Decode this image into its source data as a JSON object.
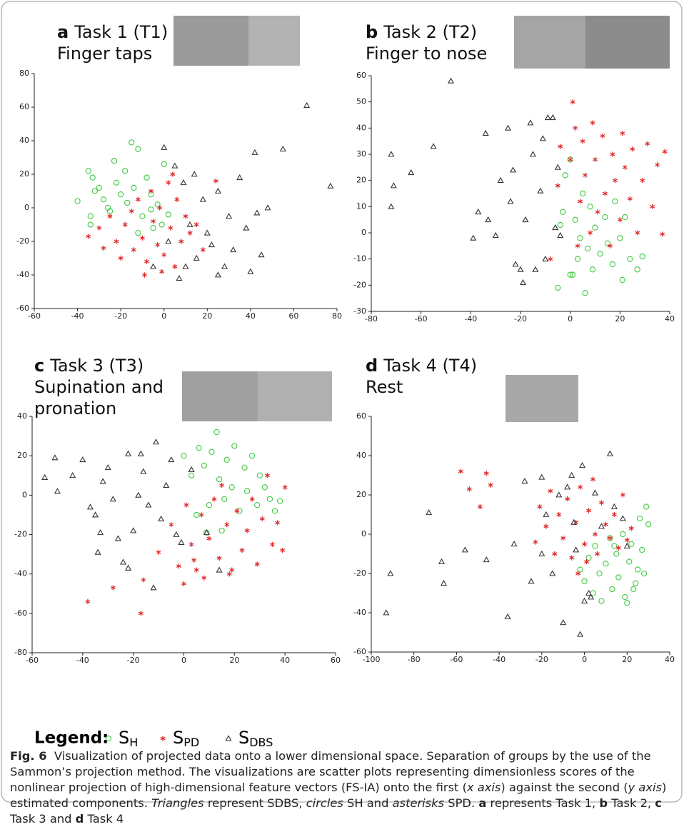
{
  "chart_data": [
    {
      "type": "scatter",
      "label": "a",
      "title": "Task 1 (T1)",
      "subtitle": "Finger taps",
      "xlim": [
        -60,
        80
      ],
      "ylim": [
        -60,
        80
      ],
      "xticks": [
        -60,
        -40,
        -20,
        0,
        20,
        40,
        60,
        80
      ],
      "yticks": [
        -60,
        -40,
        -20,
        0,
        20,
        40,
        60,
        80
      ],
      "series": [
        {
          "marker": "circle",
          "color": "#3fc93f",
          "x": [
            -40,
            -35,
            -34,
            -33,
            -32,
            -30,
            -28,
            -25,
            -23,
            -22,
            -20,
            -18,
            -17,
            -15,
            -14,
            -12,
            -10,
            -8,
            -6,
            -5,
            -3,
            -1,
            0,
            2,
            -34,
            -26,
            -12,
            -6
          ],
          "values": [
            4,
            22,
            -5,
            18,
            10,
            12,
            5,
            -2,
            28,
            15,
            8,
            22,
            3,
            39,
            12,
            35,
            -5,
            18,
            8,
            -12,
            2,
            -10,
            26,
            -4,
            -10,
            0,
            -15,
            -1
          ]
        },
        {
          "marker": "asterisk",
          "color": "#e02828",
          "x": [
            -35,
            -30,
            -28,
            -25,
            -22,
            -20,
            -18,
            -15,
            -14,
            -12,
            -10,
            -8,
            -6,
            -5,
            -3,
            -2,
            0,
            2,
            3,
            5,
            6,
            8,
            10,
            12,
            15,
            18,
            24,
            -9,
            -1,
            4
          ],
          "values": [
            -17,
            -12,
            -24,
            -5,
            -20,
            -30,
            -10,
            -2,
            -25,
            5,
            -18,
            -32,
            10,
            -8,
            -22,
            0,
            -28,
            15,
            -12,
            -35,
            5,
            -20,
            -5,
            -15,
            -10,
            -25,
            16,
            -40,
            -38,
            20
          ]
        },
        {
          "marker": "triangle",
          "color": "#333333",
          "x": [
            -5,
            0,
            2,
            5,
            7,
            9,
            10,
            12,
            14,
            15,
            18,
            20,
            22,
            25,
            28,
            30,
            32,
            35,
            38,
            40,
            42,
            45,
            48,
            55,
            66,
            77,
            43,
            25
          ],
          "values": [
            -35,
            36,
            -20,
            25,
            -42,
            15,
            -35,
            -10,
            20,
            -30,
            5,
            -15,
            -22,
            10,
            -35,
            -5,
            -25,
            18,
            -12,
            -38,
            33,
            -28,
            0,
            35,
            61,
            13,
            -3,
            -40
          ]
        }
      ]
    },
    {
      "type": "scatter",
      "label": "b",
      "title": "Task 2 (T2)",
      "subtitle": "Finger to nose",
      "xlim": [
        -80,
        40
      ],
      "ylim": [
        -30,
        60
      ],
      "xticks": [
        -80,
        -60,
        -40,
        -20,
        0,
        20,
        40
      ],
      "yticks": [
        -30,
        -20,
        -10,
        0,
        10,
        20,
        30,
        40,
        50,
        60
      ],
      "series": [
        {
          "marker": "circle",
          "color": "#3fc93f",
          "x": [
            -5,
            -3,
            -2,
            0,
            0,
            2,
            3,
            4,
            5,
            6,
            7,
            8,
            9,
            10,
            12,
            14,
            15,
            17,
            18,
            20,
            21,
            22,
            24,
            27,
            29,
            1,
            -4
          ],
          "values": [
            -21,
            8,
            22,
            -16,
            28,
            5,
            -10,
            -2,
            15,
            -23,
            -6,
            10,
            -14,
            2,
            -8,
            6,
            -4,
            -12,
            12,
            -2,
            -18,
            6,
            -10,
            -14,
            -9,
            -16,
            3
          ]
        },
        {
          "marker": "asterisk",
          "color": "#e02828",
          "x": [
            -8,
            -5,
            -4,
            0,
            1,
            2,
            3,
            4,
            5,
            6,
            8,
            9,
            10,
            11,
            13,
            14,
            16,
            17,
            18,
            20,
            21,
            22,
            24,
            25,
            27,
            29,
            31,
            33,
            35,
            37,
            38
          ],
          "values": [
            -10,
            18,
            33,
            28,
            50,
            40,
            -5,
            12,
            35,
            22,
            0,
            42,
            28,
            8,
            37,
            15,
            -5,
            30,
            20,
            5,
            38,
            25,
            13,
            32,
            0,
            20,
            34,
            10,
            26,
            -0.5,
            31
          ]
        },
        {
          "marker": "triangle",
          "color": "#333333",
          "x": [
            -72,
            -72,
            -71,
            -64,
            -55,
            -48,
            -39,
            -37,
            -34,
            -33,
            -30,
            -28,
            -25,
            -24,
            -22,
            -20,
            -19,
            -18,
            -16,
            -14,
            -12,
            -11,
            -10,
            -9,
            -7,
            -6,
            -5,
            -4,
            -23,
            -15
          ],
          "values": [
            30,
            10,
            18,
            23,
            33,
            58,
            -2,
            8,
            38,
            5,
            -1,
            20,
            40,
            12,
            -12,
            -14,
            -19,
            5,
            42,
            -14,
            16,
            36,
            -10,
            44,
            44,
            2,
            25,
            -1,
            24,
            30
          ]
        }
      ]
    },
    {
      "type": "scatter",
      "label": "c",
      "title": "Task 3 (T3)",
      "subtitle": "Supination and pronation",
      "xlim": [
        -60,
        60
      ],
      "ylim": [
        -80,
        40
      ],
      "xticks": [
        -60,
        -40,
        -20,
        0,
        20,
        40,
        60
      ],
      "yticks": [
        -80,
        -60,
        -40,
        -20,
        0,
        20,
        40
      ],
      "series": [
        {
          "marker": "circle",
          "color": "#3fc93f",
          "x": [
            0,
            3,
            5,
            6,
            8,
            10,
            11,
            13,
            14,
            16,
            17,
            19,
            20,
            22,
            24,
            25,
            27,
            29,
            30,
            32,
            34,
            36,
            38,
            15,
            9
          ],
          "values": [
            20,
            10,
            -10,
            24,
            15,
            -5,
            22,
            32,
            8,
            -2,
            18,
            4,
            25,
            -8,
            14,
            2,
            20,
            -5,
            10,
            4,
            -2,
            -8,
            -3,
            -18,
            -19
          ]
        },
        {
          "marker": "asterisk",
          "color": "#e02828",
          "x": [
            -38,
            -28,
            -17,
            -16,
            -10,
            -5,
            -2,
            0,
            1,
            3,
            5,
            7,
            8,
            10,
            12,
            14,
            15,
            17,
            19,
            21,
            23,
            25,
            27,
            29,
            31,
            33,
            35,
            37,
            39,
            40,
            18,
            4
          ],
          "values": [
            -54,
            -47,
            -60,
            -43,
            -29,
            -15,
            -36,
            -45,
            -5,
            -25,
            -38,
            -10,
            -42,
            -22,
            -2,
            -32,
            5,
            -15,
            -38,
            -8,
            -28,
            -18,
            -2,
            -35,
            -12,
            10,
            -25,
            -14,
            -28,
            4,
            -40,
            -33
          ]
        },
        {
          "marker": "triangle",
          "color": "#333333",
          "x": [
            -55,
            -51,
            -50,
            -44,
            -40,
            -37,
            -35,
            -34,
            -33,
            -32,
            -30,
            -28,
            -26,
            -24,
            -22,
            -20,
            -18,
            -17,
            -16,
            -14,
            -12,
            -11,
            -9,
            -7,
            -5,
            -3,
            -1,
            3,
            9,
            14,
            -22
          ],
          "values": [
            9,
            19,
            2,
            10,
            18,
            -6,
            -10,
            -29,
            -19,
            7,
            14,
            -2,
            -22,
            -34,
            21,
            -18,
            0,
            21,
            12,
            -5,
            -47,
            27,
            -12,
            5,
            18,
            -20,
            -24,
            13,
            -19,
            -38,
            -37
          ]
        }
      ]
    },
    {
      "type": "scatter",
      "label": "d",
      "title": "Task 4 (T4)",
      "subtitle": "Rest",
      "xlim": [
        -100,
        40
      ],
      "ylim": [
        -60,
        60
      ],
      "xticks": [
        -100,
        -80,
        -60,
        -40,
        -20,
        0,
        20,
        40
      ],
      "yticks": [
        -60,
        -40,
        -20,
        0,
        20,
        40,
        60
      ],
      "series": [
        {
          "marker": "circle",
          "color": "#3fc93f",
          "x": [
            -2,
            0,
            2,
            4,
            5,
            7,
            8,
            10,
            12,
            13,
            15,
            16,
            18,
            19,
            20,
            21,
            22,
            24,
            25,
            26,
            27,
            28,
            29,
            30,
            23,
            14
          ],
          "values": [
            -18,
            -24,
            -12,
            -30,
            -6,
            -20,
            -34,
            -15,
            -2,
            -28,
            -10,
            -22,
            0,
            -32,
            -35,
            -14,
            -5,
            -25,
            -18,
            8,
            -8,
            -20,
            14,
            5,
            -28,
            -6
          ]
        },
        {
          "marker": "asterisk",
          "color": "#e02828",
          "x": [
            -58,
            -54,
            -49,
            -46,
            -44,
            -23,
            -21,
            -18,
            -16,
            -14,
            -12,
            -10,
            -8,
            -6,
            -4,
            -2,
            0,
            2,
            4,
            5,
            6,
            8,
            10,
            12,
            14,
            16,
            18,
            20,
            22,
            -3,
            1
          ],
          "values": [
            32,
            23,
            14,
            31,
            25,
            -4,
            14,
            4,
            22,
            -10,
            10,
            -2,
            18,
            -12,
            6,
            24,
            -5,
            12,
            28,
            0,
            -10,
            16,
            5,
            -2,
            10,
            -7,
            20,
            -3,
            3,
            -20,
            -14
          ]
        },
        {
          "marker": "triangle",
          "color": "#333333",
          "x": [
            -93,
            -91,
            -73,
            -67,
            -66,
            -56,
            -46,
            -36,
            -33,
            -28,
            -25,
            -20,
            -18,
            -15,
            -12,
            -10,
            -8,
            -6,
            -5,
            -4,
            -2,
            -1,
            0,
            2,
            3,
            5,
            8,
            12,
            14,
            18,
            20,
            -20
          ],
          "values": [
            -40,
            -20,
            11,
            -14,
            -25,
            -8,
            -13,
            -42,
            -5,
            27,
            -24,
            -10,
            10,
            -20,
            20,
            -45,
            24,
            30,
            6,
            -8,
            -51,
            35,
            -34,
            -30,
            -32,
            21,
            4,
            41,
            14,
            8,
            -6,
            29
          ]
        }
      ]
    }
  ],
  "legend": {
    "title": "Legend:",
    "entries": [
      {
        "symbol": "S",
        "subscript": "H",
        "marker": "circle",
        "color": "#3fc93f"
      },
      {
        "symbol": "S",
        "subscript": "PD",
        "marker": "asterisk",
        "color": "#e02828"
      },
      {
        "symbol": "S",
        "subscript": "DBS",
        "marker": "triangle",
        "color": "#333333"
      }
    ]
  },
  "caption": [
    {
      "text": "Fig. 6",
      "style": "bold"
    },
    {
      "text": "  Visualization of projected data onto a lower dimensional space. Separation of groups by the use of the Sammon’s projection method. The visualizations are scatter plots representing dimensionless scores of the nonlinear projection of high-dimensional feature vectors (FS-IA) onto the first (",
      "style": "normal"
    },
    {
      "text": "x axis",
      "style": "italic"
    },
    {
      "text": ") against the second (",
      "style": "normal"
    },
    {
      "text": "y axis",
      "style": "italic"
    },
    {
      "text": ") estimated components. ",
      "style": "normal"
    },
    {
      "text": "Triangles",
      "style": "italic"
    },
    {
      "text": " represent SDBS, ",
      "style": "normal"
    },
    {
      "text": "circles",
      "style": "italic"
    },
    {
      "text": " SH and ",
      "style": "normal"
    },
    {
      "text": "asterisks",
      "style": "italic"
    },
    {
      "text": " SPD. ",
      "style": "normal"
    },
    {
      "text": "a",
      "style": "bold"
    },
    {
      "text": " represents Task 1, ",
      "style": "normal"
    },
    {
      "text": "b",
      "style": "bold"
    },
    {
      "text": " Task 2, ",
      "style": "normal"
    },
    {
      "text": "c",
      "style": "bold"
    },
    {
      "text": " Task 3 and ",
      "style": "normal"
    },
    {
      "text": "d",
      "style": "bold"
    },
    {
      "text": " Task 4",
      "style": "normal"
    }
  ]
}
